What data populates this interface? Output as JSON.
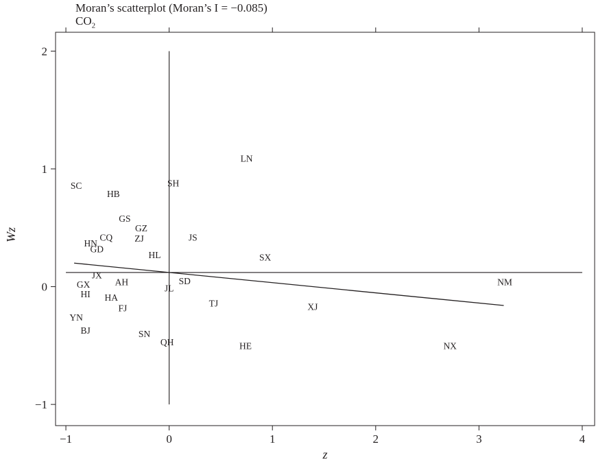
{
  "chart_data": {
    "type": "scatter",
    "title": "Moran’s scatterplot (Moran’s I = −0.085)",
    "subtitle": {
      "base": "CO",
      "sub": "2"
    },
    "xlabel": "z",
    "ylabel": "Wz",
    "xlim": [
      -1.1,
      4.12
    ],
    "ylim": [
      -1.18,
      2.16
    ],
    "x_ticks": [
      {
        "value": -1,
        "label": "−1"
      },
      {
        "value": 0,
        "label": "0"
      },
      {
        "value": 1,
        "label": "1"
      },
      {
        "value": 2,
        "label": "2"
      },
      {
        "value": 3,
        "label": "3"
      },
      {
        "value": 4,
        "label": "4"
      }
    ],
    "y_ticks": [
      {
        "value": -1,
        "label": "−1"
      },
      {
        "value": 0,
        "label": "0"
      },
      {
        "value": 1,
        "label": "1"
      },
      {
        "value": 2,
        "label": "2"
      }
    ],
    "grid": false,
    "marker": "text-label",
    "points": [
      {
        "label": "LN",
        "x": 0.75,
        "y": 1.09
      },
      {
        "label": "SC",
        "x": -0.9,
        "y": 0.86
      },
      {
        "label": "SH",
        "x": 0.04,
        "y": 0.88
      },
      {
        "label": "HB",
        "x": -0.54,
        "y": 0.79
      },
      {
        "label": "GS",
        "x": -0.43,
        "y": 0.58
      },
      {
        "label": "GZ",
        "x": -0.27,
        "y": 0.5
      },
      {
        "label": "ZJ",
        "x": -0.29,
        "y": 0.41
      },
      {
        "label": "JS",
        "x": 0.23,
        "y": 0.42
      },
      {
        "label": "CQ",
        "x": -0.61,
        "y": 0.42
      },
      {
        "label": "HN",
        "x": -0.76,
        "y": 0.37
      },
      {
        "label": "GD",
        "x": -0.7,
        "y": 0.32
      },
      {
        "label": "HL",
        "x": -0.14,
        "y": 0.27
      },
      {
        "label": "SX",
        "x": 0.93,
        "y": 0.25
      },
      {
        "label": "JX",
        "x": -0.7,
        "y": 0.1
      },
      {
        "label": "AH",
        "x": -0.46,
        "y": 0.04
      },
      {
        "label": "SD",
        "x": 0.15,
        "y": 0.05
      },
      {
        "label": "NM",
        "x": 3.25,
        "y": 0.04
      },
      {
        "label": "GX",
        "x": -0.83,
        "y": 0.02
      },
      {
        "label": "JL",
        "x": 0.0,
        "y": -0.01
      },
      {
        "label": "HI",
        "x": -0.81,
        "y": -0.06
      },
      {
        "label": "HA",
        "x": -0.56,
        "y": -0.09
      },
      {
        "label": "TJ",
        "x": 0.43,
        "y": -0.14
      },
      {
        "label": "XJ",
        "x": 1.39,
        "y": -0.17
      },
      {
        "label": "FJ",
        "x": -0.45,
        "y": -0.18
      },
      {
        "label": "YN",
        "x": -0.9,
        "y": -0.26
      },
      {
        "label": "BJ",
        "x": -0.81,
        "y": -0.37
      },
      {
        "label": "SN",
        "x": -0.24,
        "y": -0.4
      },
      {
        "label": "QH",
        "x": -0.02,
        "y": -0.47
      },
      {
        "label": "HE",
        "x": 0.74,
        "y": -0.5
      },
      {
        "label": "NX",
        "x": 2.72,
        "y": -0.5
      }
    ],
    "reference_lines": {
      "vertical_x": 0,
      "vertical_y_range": [
        -1,
        2
      ],
      "horizontal_y": 0.12,
      "horizontal_x_range": [
        -1,
        4
      ]
    },
    "regression_line": {
      "x1": -0.92,
      "y1": 0.2,
      "x2": 3.24,
      "y2": -0.16
    }
  }
}
